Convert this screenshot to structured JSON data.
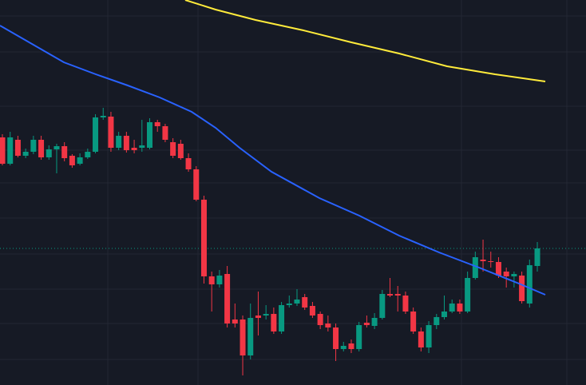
{
  "chart_data": {
    "type": "candlestick",
    "up_color": "#089981",
    "down_color": "#f23645",
    "xlim": [
      -0.31,
      75.28
    ],
    "ylim": [
      0,
      482
    ],
    "open": [
      310,
      277,
      307,
      287,
      292,
      307,
      285,
      295,
      299,
      287,
      277,
      285,
      292,
      335,
      336,
      297,
      312,
      297,
      297,
      297,
      329,
      324,
      304,
      302,
      284,
      270,
      232,
      136,
      126,
      139,
      82,
      82,
      37,
      87,
      87,
      89,
      67,
      100,
      102,
      110,
      99,
      89,
      77,
      72,
      45,
      52,
      45,
      78,
      74,
      84,
      114,
      114,
      112,
      92,
      67,
      47,
      75,
      85,
      92,
      102,
      92,
      134,
      157,
      155,
      154,
      142,
      136,
      137,
      102,
      149
    ],
    "high": [
      314,
      317,
      312,
      296,
      312,
      312,
      300,
      302,
      304,
      289,
      290,
      296,
      339,
      347,
      342,
      317,
      317,
      307,
      332,
      334,
      332,
      327,
      309,
      307,
      290,
      274,
      237,
      142,
      144,
      149,
      102,
      87,
      102,
      117,
      100,
      97,
      104,
      112,
      120,
      114,
      104,
      92,
      87,
      77,
      54,
      57,
      79,
      87,
      90,
      119,
      134,
      124,
      117,
      97,
      72,
      80,
      89,
      112,
      107,
      107,
      142,
      167,
      182,
      167,
      160,
      147,
      142,
      142,
      157,
      179
    ],
    "low": [
      275,
      275,
      285,
      284,
      289,
      282,
      282,
      265,
      280,
      272,
      275,
      283,
      290,
      332,
      292,
      294,
      291,
      290,
      292,
      295,
      317,
      304,
      284,
      282,
      267,
      230,
      127,
      92,
      122,
      72,
      72,
      12,
      32,
      62,
      82,
      64,
      64,
      97,
      99,
      94,
      84,
      70,
      67,
      30,
      42,
      40,
      42,
      72,
      70,
      82,
      110,
      92,
      89,
      64,
      42,
      40,
      70,
      82,
      90,
      89,
      90,
      132,
      142,
      147,
      134,
      122,
      122,
      102,
      97,
      142
    ],
    "close": [
      277,
      310,
      287,
      292,
      307,
      285,
      295,
      299,
      284,
      275,
      285,
      292,
      335,
      337,
      297,
      312,
      294,
      294,
      300,
      329,
      324,
      307,
      287,
      284,
      270,
      232,
      136,
      126,
      137,
      77,
      77,
      37,
      84,
      84,
      89,
      67,
      100,
      102,
      107,
      97,
      87,
      75,
      72,
      45,
      49,
      45,
      75,
      75,
      84,
      114,
      112,
      112,
      92,
      67,
      47,
      75,
      85,
      92,
      102,
      92,
      134,
      160,
      155,
      154,
      137,
      136,
      139,
      105,
      150,
      171
    ],
    "lines": [
      {
        "color": "#2962ff",
        "x": [
          -0.31,
          3.81,
          7.93,
          12.05,
          16.17,
          20.29,
          24.41,
          27.5,
          30.59,
          34.71,
          40.89,
          46.04,
          51.18,
          56.33,
          61.48,
          66.63,
          70.03
        ],
        "values": [
          450,
          427,
          404,
          389,
          375,
          360,
          342,
          322,
          297,
          267,
          234,
          212,
          187,
          166,
          147,
          127,
          113
        ]
      },
      {
        "color": "#ffeb3b",
        "x": [
          23.58,
          27.5,
          32.65,
          38.83,
          45.01,
          51.18,
          57.36,
          63.54,
          70.03
        ],
        "values": [
          482,
          470,
          457,
          444,
          429,
          415,
          399,
          389,
          380
        ]
      }
    ]
  }
}
